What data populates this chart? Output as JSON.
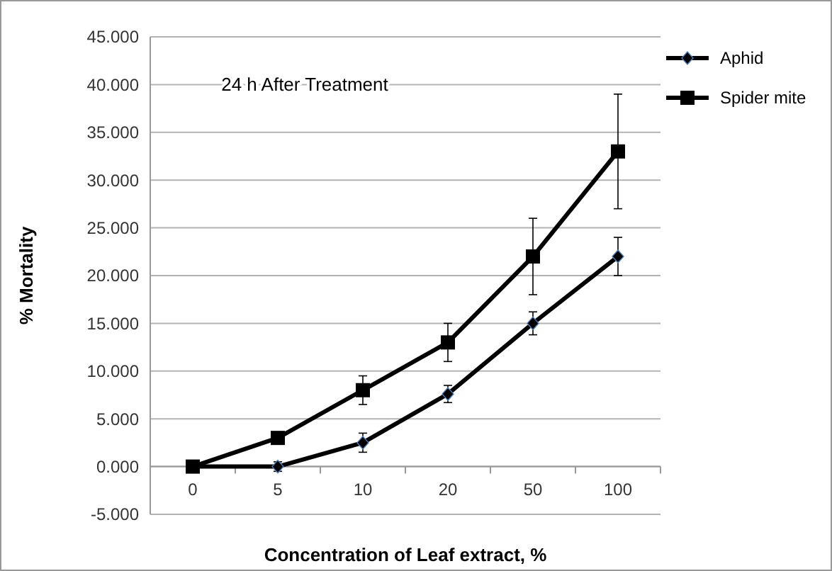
{
  "chart_data": {
    "type": "line",
    "xlabel": "Concentration of Leaf  extract, %",
    "ylabel": "% Mortality",
    "categories": [
      "0",
      "5",
      "10",
      "20",
      "50",
      "100"
    ],
    "ylim": [
      -5,
      45
    ],
    "yticks": [
      {
        "value": -5,
        "label": "-5.000"
      },
      {
        "value": 0,
        "label": "0.000"
      },
      {
        "value": 5,
        "label": "5.000"
      },
      {
        "value": 10,
        "label": "10.000"
      },
      {
        "value": 15,
        "label": "15.000"
      },
      {
        "value": 20,
        "label": "20.000"
      },
      {
        "value": 25,
        "label": "25.000"
      },
      {
        "value": 30,
        "label": "30.000"
      },
      {
        "value": 35,
        "label": "35.000"
      },
      {
        "value": 40,
        "label": "40.000"
      },
      {
        "value": 45,
        "label": "45.000"
      }
    ],
    "grid": "y",
    "legend": "right",
    "line_style": "solid",
    "annotations": [
      "24 h After Treatment"
    ],
    "series": [
      {
        "name": "Aphid",
        "color": "#000000",
        "marker": "diamond",
        "values": [
          0,
          0,
          2.5,
          7.6,
          15,
          22
        ],
        "errors": [
          null,
          0.5,
          1,
          0.9,
          1.2,
          2
        ]
      },
      {
        "name": "Spider mite",
        "color": "#000000",
        "marker": "square",
        "values": [
          0,
          3,
          8,
          13,
          22,
          33
        ],
        "errors": [
          null,
          null,
          1.5,
          2,
          4,
          6
        ]
      }
    ]
  }
}
